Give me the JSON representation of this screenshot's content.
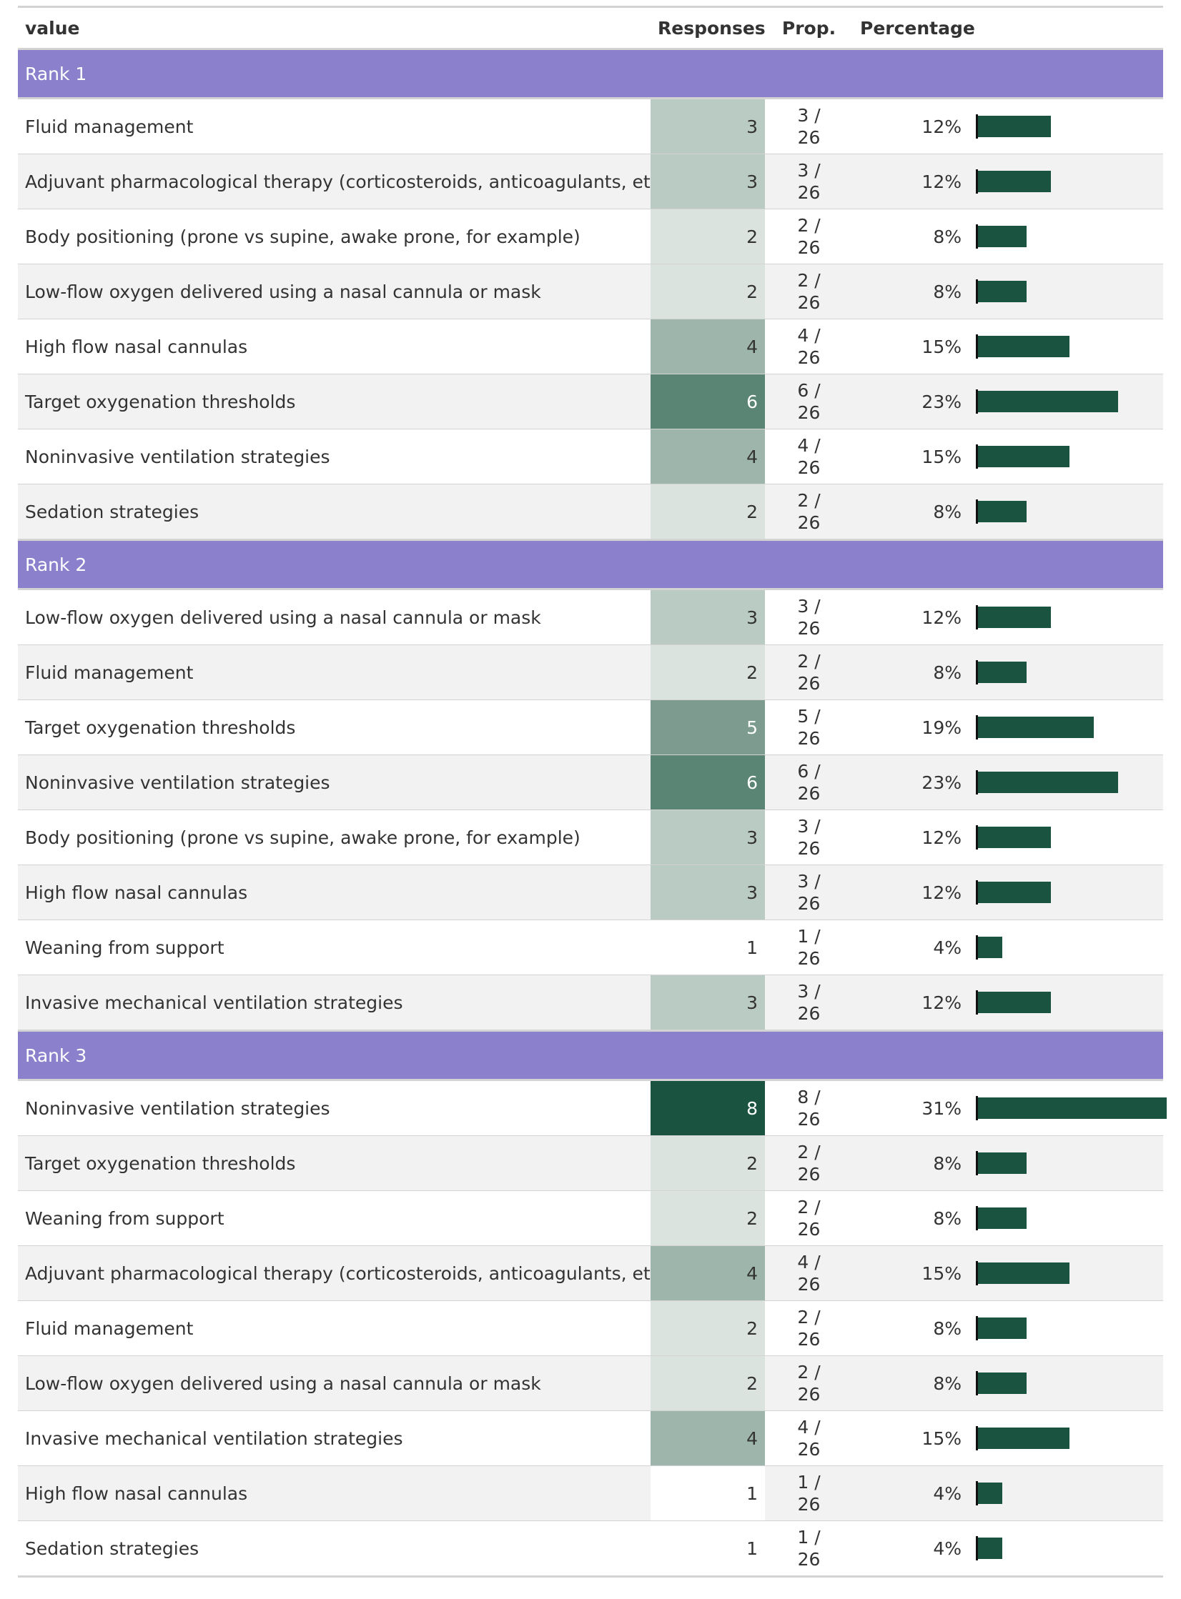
{
  "table": {
    "headers": {
      "value": "value",
      "responses": "Responses",
      "prop": "Prop.",
      "percentage": "Percentage"
    },
    "max_percentage": 31,
    "colors": {
      "group_header_bg": "#8a80cc",
      "bar": "#1a5441",
      "response_scale": [
        "#ffffff",
        "#dbe3df",
        "#bacbc3",
        "#9db5aa",
        "#7d9c8f",
        "#5a8474",
        "#1a5441"
      ]
    },
    "groups": [
      {
        "label": "Rank 1",
        "rows": [
          {
            "value": "Fluid management",
            "responses": "3",
            "prop_top": "3 /",
            "prop_bottom": "26",
            "percentage": "12%",
            "pct": 12
          },
          {
            "value": "Adjuvant pharmacological therapy (corticosteroids, anticoagulants, etc.)",
            "responses": "3",
            "prop_top": "3 /",
            "prop_bottom": "26",
            "percentage": "12%",
            "pct": 12
          },
          {
            "value": "Body positioning (prone vs supine, awake prone, for example)",
            "responses": "2",
            "prop_top": "2 /",
            "prop_bottom": "26",
            "percentage": "8%",
            "pct": 8
          },
          {
            "value": "Low-flow oxygen delivered using a nasal cannula or mask",
            "responses": "2",
            "prop_top": "2 /",
            "prop_bottom": "26",
            "percentage": "8%",
            "pct": 8
          },
          {
            "value": "High flow nasal cannulas",
            "responses": "4",
            "prop_top": "4 /",
            "prop_bottom": "26",
            "percentage": "15%",
            "pct": 15
          },
          {
            "value": "Target oxygenation thresholds",
            "responses": "6",
            "prop_top": "6 /",
            "prop_bottom": "26",
            "percentage": "23%",
            "pct": 23
          },
          {
            "value": "Noninvasive ventilation strategies",
            "responses": "4",
            "prop_top": "4 /",
            "prop_bottom": "26",
            "percentage": "15%",
            "pct": 15
          },
          {
            "value": "Sedation strategies",
            "responses": "2",
            "prop_top": "2 /",
            "prop_bottom": "26",
            "percentage": "8%",
            "pct": 8
          }
        ]
      },
      {
        "label": "Rank 2",
        "rows": [
          {
            "value": "Low-flow oxygen delivered using a nasal cannula or mask",
            "responses": "3",
            "prop_top": "3 /",
            "prop_bottom": "26",
            "percentage": "12%",
            "pct": 12
          },
          {
            "value": "Fluid management",
            "responses": "2",
            "prop_top": "2 /",
            "prop_bottom": "26",
            "percentage": "8%",
            "pct": 8
          },
          {
            "value": "Target oxygenation thresholds",
            "responses": "5",
            "prop_top": "5 /",
            "prop_bottom": "26",
            "percentage": "19%",
            "pct": 19
          },
          {
            "value": "Noninvasive ventilation strategies",
            "responses": "6",
            "prop_top": "6 /",
            "prop_bottom": "26",
            "percentage": "23%",
            "pct": 23
          },
          {
            "value": "Body positioning (prone vs supine, awake prone, for example)",
            "responses": "3",
            "prop_top": "3 /",
            "prop_bottom": "26",
            "percentage": "12%",
            "pct": 12
          },
          {
            "value": "High flow nasal cannulas",
            "responses": "3",
            "prop_top": "3 /",
            "prop_bottom": "26",
            "percentage": "12%",
            "pct": 12
          },
          {
            "value": "Weaning from support",
            "responses": "1",
            "prop_top": "1 /",
            "prop_bottom": "26",
            "percentage": "4%",
            "pct": 4
          },
          {
            "value": "Invasive mechanical ventilation strategies",
            "responses": "3",
            "prop_top": "3 /",
            "prop_bottom": "26",
            "percentage": "12%",
            "pct": 12
          }
        ]
      },
      {
        "label": "Rank 3",
        "rows": [
          {
            "value": "Noninvasive ventilation strategies",
            "responses": "8",
            "prop_top": "8 /",
            "prop_bottom": "26",
            "percentage": "31%",
            "pct": 31
          },
          {
            "value": "Target oxygenation thresholds",
            "responses": "2",
            "prop_top": "2 /",
            "prop_bottom": "26",
            "percentage": "8%",
            "pct": 8
          },
          {
            "value": "Weaning from support",
            "responses": "2",
            "prop_top": "2 /",
            "prop_bottom": "26",
            "percentage": "8%",
            "pct": 8
          },
          {
            "value": "Adjuvant pharmacological therapy (corticosteroids, anticoagulants, etc.)",
            "responses": "4",
            "prop_top": "4 /",
            "prop_bottom": "26",
            "percentage": "15%",
            "pct": 15
          },
          {
            "value": "Fluid management",
            "responses": "2",
            "prop_top": "2 /",
            "prop_bottom": "26",
            "percentage": "8%",
            "pct": 8
          },
          {
            "value": "Low-flow oxygen delivered using a nasal cannula or mask",
            "responses": "2",
            "prop_top": "2 /",
            "prop_bottom": "26",
            "percentage": "8%",
            "pct": 8
          },
          {
            "value": "Invasive mechanical ventilation strategies",
            "responses": "4",
            "prop_top": "4 /",
            "prop_bottom": "26",
            "percentage": "15%",
            "pct": 15
          },
          {
            "value": "High flow nasal cannulas",
            "responses": "1",
            "prop_top": "1 /",
            "prop_bottom": "26",
            "percentage": "4%",
            "pct": 4
          },
          {
            "value": "Sedation strategies",
            "responses": "1",
            "prop_top": "1 /",
            "prop_bottom": "26",
            "percentage": "4%",
            "pct": 4
          }
        ]
      }
    ]
  }
}
